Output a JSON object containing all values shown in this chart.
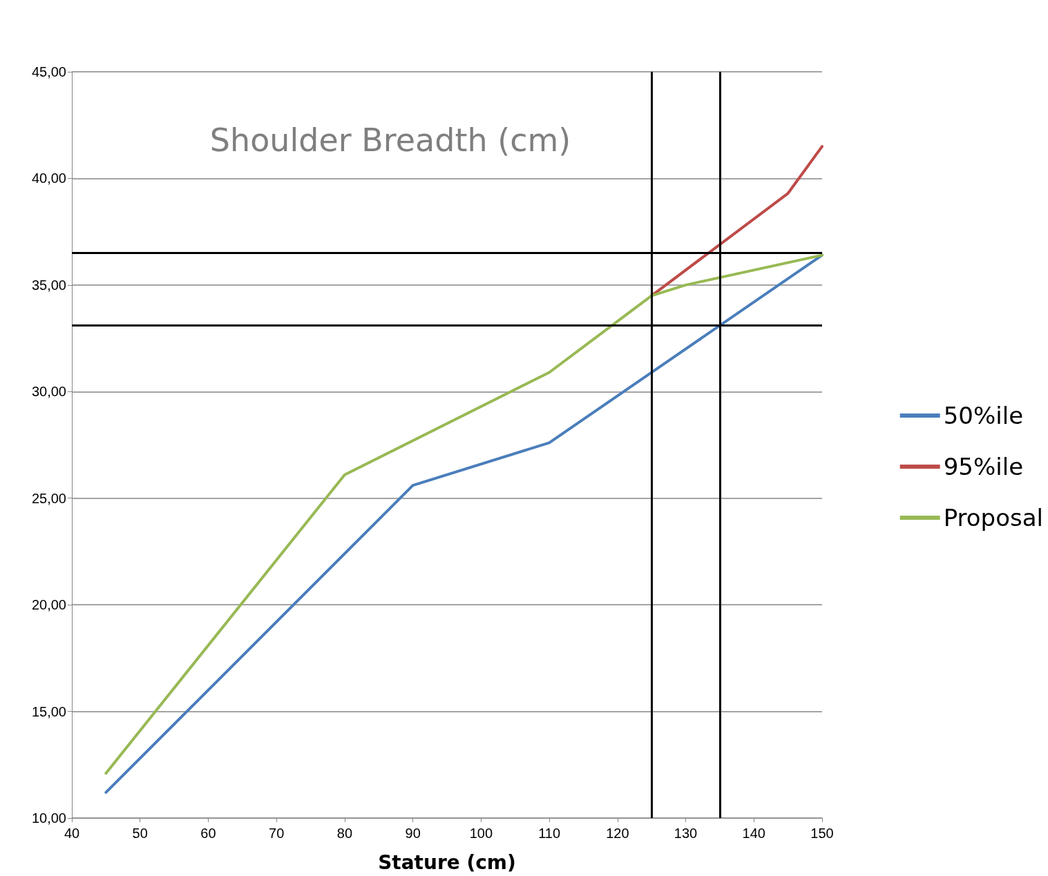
{
  "chart_data": {
    "type": "line",
    "title": "Shoulder Breadth (cm)",
    "xlabel": "Stature (cm)",
    "xlim": [
      40,
      150
    ],
    "xticks": [
      40,
      50,
      60,
      70,
      80,
      90,
      100,
      110,
      120,
      130,
      140,
      150
    ],
    "ylim": [
      10,
      45
    ],
    "yticks": [
      {
        "value": 10,
        "label": "10,00"
      },
      {
        "value": 15,
        "label": "15,00"
      },
      {
        "value": 20,
        "label": "20,00"
      },
      {
        "value": 25,
        "label": "25,00"
      },
      {
        "value": 30,
        "label": "30,00"
      },
      {
        "value": 35,
        "label": "35,00"
      },
      {
        "value": 40,
        "label": "40,00"
      },
      {
        "value": 45,
        "label": "45,00"
      }
    ],
    "grid": "y",
    "legend": "right",
    "marker": "none",
    "series": [
      {
        "name": "50%ile",
        "color": "#4a7ebb",
        "x": [
          45,
          90,
          110,
          150
        ],
        "values": [
          11.2,
          25.6,
          27.6,
          36.4
        ]
      },
      {
        "name": "95%ile",
        "color": "#be4b48",
        "x": [
          125,
          145,
          150
        ],
        "values": [
          34.5,
          39.3,
          41.5
        ]
      },
      {
        "name": "Proposal",
        "color": "#98b954",
        "x": [
          45,
          80,
          110,
          125,
          130,
          150
        ],
        "values": [
          12.1,
          26.1,
          30.9,
          34.5,
          35.0,
          36.4
        ]
      }
    ],
    "ref_lines": [
      {
        "axis": "x",
        "value": 125,
        "color": "#000000"
      },
      {
        "axis": "x",
        "value": 135,
        "color": "#000000"
      },
      {
        "axis": "y",
        "value": 36.5,
        "color": "#000000"
      },
      {
        "axis": "y",
        "value": 33.1,
        "color": "#000000"
      }
    ]
  }
}
